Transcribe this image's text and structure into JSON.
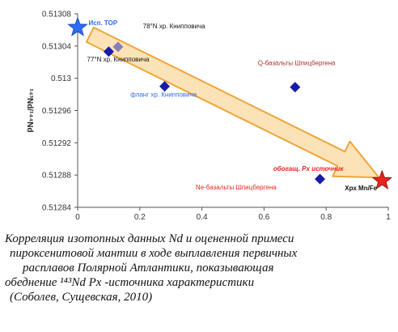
{
  "chart_data": {
    "type": "scatter",
    "ylabel": "¹⁴³Nd/¹⁴⁴Nd",
    "xlim": [
      0,
      1
    ],
    "ylim": [
      0.51284,
      0.51308
    ],
    "xticks": [
      "0",
      "0.2",
      "0.4",
      "0.6",
      "0.8",
      "1"
    ],
    "yticks": [
      "0.51308",
      "0.51304",
      "0.513",
      "0.51296",
      "0.51292",
      "0.51288",
      "0.51284"
    ],
    "points": [
      {
        "x": 0.1,
        "y": 0.513033,
        "marker": "diamond",
        "color": "#1a1aa8"
      },
      {
        "x": 0.13,
        "y": 0.513039,
        "marker": "diamond",
        "color": "#8a7fb8"
      },
      {
        "x": 0.28,
        "y": 0.51299,
        "marker": "diamond",
        "color": "#1a1aa8"
      },
      {
        "x": 0.7,
        "y": 0.512989,
        "marker": "diamond",
        "color": "#1a1aa8"
      },
      {
        "x": 0.78,
        "y": 0.512875,
        "marker": "diamond",
        "color": "#1a1aa8"
      },
      {
        "x": 0.0,
        "y": 0.513063,
        "marker": "star",
        "color": "#2f6df2"
      },
      {
        "x": 0.98,
        "y": 0.512873,
        "marker": "star",
        "color": "#e8241c"
      }
    ],
    "annotations": [
      {
        "text": "Исп. ТОР",
        "color": "#2f6df2",
        "x": 0.035,
        "y": 0.513066,
        "bold": true,
        "size": 10
      },
      {
        "text": "78°N хр. Книпповича",
        "color": "#111111",
        "x": 0.21,
        "y": 0.513062,
        "bold": false,
        "size": 8
      },
      {
        "text": "77°N хр. Книпповича",
        "color": "#111111",
        "x": 0.03,
        "y": 0.513021,
        "bold": false,
        "size": 8
      },
      {
        "text": "фланг хр. Книпповича",
        "color": "#2f6df2",
        "x": 0.17,
        "y": 0.512977,
        "bold": false,
        "size": 8
      },
      {
        "text": "Q-базальты Шпицбергена",
        "color": "#a83232",
        "x": 0.58,
        "y": 0.513016,
        "bold": false,
        "size": 8
      },
      {
        "text": "обогащ. Рх источник",
        "color": "#e8241c",
        "x": 0.63,
        "y": 0.512885,
        "bold": true,
        "size": 10
      },
      {
        "text": "Ne-базальты Шпицбергена",
        "color": "#e8241c",
        "x": 0.38,
        "y": 0.512862,
        "bold": false,
        "size": 8
      },
      {
        "text": "Хрх Mn/Fe",
        "color": "#111111",
        "x": 0.86,
        "y": 0.512861,
        "bold": true,
        "size": 9
      }
    ],
    "arrow": {
      "from": [
        0.04,
        0.513054
      ],
      "to": [
        0.97,
        0.512877
      ],
      "fill": "#fbe3b7",
      "stroke": "#f0a43a"
    }
  },
  "caption": [
    "Корреляция изотопных данных Nd и оцененной примеси",
    "пироксенитовой мантии в ходе выплавления первичных",
    "расплавов Полярной Атлантики, показывающая",
    "обеднение ¹⁴³Nd  Px -источника характеристики",
    "(Соболев, Сущевская, 2010)"
  ]
}
